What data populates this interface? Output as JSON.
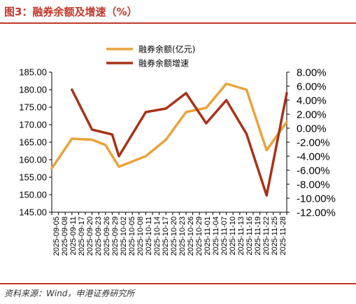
{
  "figure": {
    "title": "图3：融券余额及增速（%）",
    "source": "资料来源：Wind，申港证券研究所"
  },
  "colors": {
    "title_red": "#c0392b",
    "balance": "#e8a33a",
    "growth": "#a83218"
  },
  "chart_data": {
    "type": "line",
    "categories": [
      "2025-09-05",
      "2025-09-08",
      "2025-09-11",
      "2025-09-17",
      "2025-09-20",
      "2025-09-23",
      "2025-09-26",
      "2025-09-29",
      "2025-10-02",
      "2025-10-05",
      "2025-10-08",
      "2025-10-11",
      "2025-10-14",
      "2025-10-17",
      "2025-10-20",
      "2025-10-23",
      "2025-10-26",
      "2025-10-29",
      "2025-11-01",
      "2025-11-04",
      "2025-11-07",
      "2025-11-10",
      "2025-11-13",
      "2025-11-16",
      "2025-11-19",
      "2025-11-22",
      "2025-11-25",
      "2025-11-28"
    ],
    "series": [
      {
        "name": "融券余额(亿元)",
        "axis": "left",
        "color": "#e8a33a",
        "points": [
          [
            0,
            157.5
          ],
          [
            3,
            166.0
          ],
          [
            6,
            165.7
          ],
          [
            8,
            164.2
          ],
          [
            10,
            158.0
          ],
          [
            14,
            161.0
          ],
          [
            17,
            165.7
          ],
          [
            20,
            173.6
          ],
          [
            23,
            174.8
          ],
          [
            26,
            181.7
          ],
          [
            29,
            180.0
          ],
          [
            32,
            162.7
          ],
          [
            35,
            170.8
          ]
        ]
      },
      {
        "name": "融券余额增速",
        "axis": "right",
        "color": "#a83218",
        "points": [
          [
            3,
            5.5
          ],
          [
            6,
            -0.2
          ],
          [
            9,
            -0.9
          ],
          [
            10,
            -4.0
          ],
          [
            14,
            2.3
          ],
          [
            17,
            2.8
          ],
          [
            20,
            5.0
          ],
          [
            23,
            0.7
          ],
          [
            26,
            4.0
          ],
          [
            29,
            -0.8
          ],
          [
            32,
            -9.6
          ],
          [
            35,
            5.0
          ]
        ]
      }
    ],
    "x_points_total": 35,
    "left_axis": {
      "min": 145,
      "max": 185,
      "step": 5,
      "ticks": [
        "185.00",
        "180.00",
        "175.00",
        "170.00",
        "165.00",
        "160.00",
        "155.00",
        "150.00",
        "145.00"
      ]
    },
    "right_axis": {
      "min": -12,
      "max": 8,
      "step": 2,
      "ticks": [
        "8.00%",
        "6.00%",
        "4.00%",
        "2.00%",
        "0.00%",
        "-2.00%",
        "-4.00%",
        "-6.00%",
        "-8.00%",
        "-10.00%",
        "-12.00%"
      ]
    },
    "legend": {
      "position": "top-center",
      "entries": [
        "融券余额(亿元)",
        "融券余额增速"
      ]
    },
    "grid": false
  }
}
